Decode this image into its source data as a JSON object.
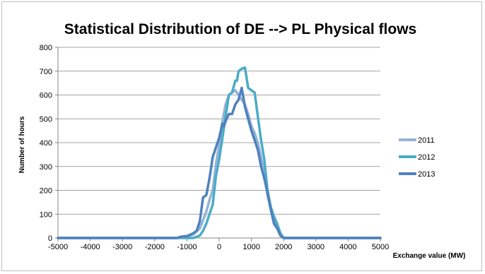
{
  "chart_data": {
    "type": "line",
    "title": "Statistical Distribution of DE --> PL Physical flows",
    "xlabel": "Exchange value (MW)",
    "ylabel": "Number of hours",
    "xlim": [
      -5000,
      5000
    ],
    "ylim": [
      0,
      800
    ],
    "xticks": [
      -5000,
      -4000,
      -3000,
      -2000,
      -1000,
      0,
      1000,
      2000,
      3000,
      4000,
      5000
    ],
    "yticks": [
      0,
      100,
      200,
      300,
      400,
      500,
      600,
      700,
      800
    ],
    "grid": true,
    "legend_position": "right",
    "series": [
      {
        "name": "2011",
        "color": "#95b3d7",
        "points": [
          [
            -5000,
            0
          ],
          [
            -1300,
            0
          ],
          [
            -1000,
            5
          ],
          [
            -800,
            15
          ],
          [
            -600,
            40
          ],
          [
            -400,
            110
          ],
          [
            -300,
            160
          ],
          [
            -200,
            200
          ],
          [
            -100,
            310
          ],
          [
            0,
            390
          ],
          [
            100,
            490
          ],
          [
            200,
            560
          ],
          [
            300,
            600
          ],
          [
            400,
            610
          ],
          [
            500,
            620
          ],
          [
            600,
            600
          ],
          [
            700,
            580
          ],
          [
            800,
            560
          ],
          [
            900,
            520
          ],
          [
            1000,
            470
          ],
          [
            1100,
            440
          ],
          [
            1200,
            400
          ],
          [
            1300,
            340
          ],
          [
            1400,
            260
          ],
          [
            1500,
            180
          ],
          [
            1600,
            120
          ],
          [
            1700,
            70
          ],
          [
            1800,
            40
          ],
          [
            1900,
            15
          ],
          [
            2000,
            0
          ],
          [
            5000,
            0
          ]
        ]
      },
      {
        "name": "2012",
        "color": "#4bacc6",
        "points": [
          [
            -5000,
            0
          ],
          [
            -800,
            0
          ],
          [
            -600,
            10
          ],
          [
            -500,
            30
          ],
          [
            -400,
            60
          ],
          [
            -300,
            100
          ],
          [
            -200,
            140
          ],
          [
            -100,
            260
          ],
          [
            0,
            330
          ],
          [
            100,
            420
          ],
          [
            200,
            510
          ],
          [
            300,
            600
          ],
          [
            400,
            610
          ],
          [
            500,
            660
          ],
          [
            550,
            660
          ],
          [
            600,
            700
          ],
          [
            700,
            710
          ],
          [
            800,
            715
          ],
          [
            900,
            630
          ],
          [
            1000,
            620
          ],
          [
            1100,
            610
          ],
          [
            1200,
            510
          ],
          [
            1300,
            410
          ],
          [
            1400,
            330
          ],
          [
            1500,
            200
          ],
          [
            1600,
            130
          ],
          [
            1700,
            90
          ],
          [
            1800,
            60
          ],
          [
            1900,
            20
          ],
          [
            2000,
            0
          ],
          [
            5000,
            0
          ]
        ]
      },
      {
        "name": "2013",
        "color": "#4f81bd",
        "points": [
          [
            -5000,
            0
          ],
          [
            -1300,
            0
          ],
          [
            -1200,
            5
          ],
          [
            -1000,
            8
          ],
          [
            -800,
            20
          ],
          [
            -700,
            30
          ],
          [
            -600,
            70
          ],
          [
            -500,
            170
          ],
          [
            -400,
            180
          ],
          [
            -300,
            250
          ],
          [
            -200,
            340
          ],
          [
            -100,
            380
          ],
          [
            0,
            420
          ],
          [
            100,
            480
          ],
          [
            150,
            470
          ],
          [
            200,
            490
          ],
          [
            300,
            520
          ],
          [
            400,
            520
          ],
          [
            500,
            560
          ],
          [
            600,
            580
          ],
          [
            700,
            630
          ],
          [
            800,
            550
          ],
          [
            900,
            500
          ],
          [
            1000,
            450
          ],
          [
            1100,
            410
          ],
          [
            1200,
            370
          ],
          [
            1300,
            300
          ],
          [
            1400,
            250
          ],
          [
            1500,
            190
          ],
          [
            1600,
            120
          ],
          [
            1700,
            60
          ],
          [
            1800,
            40
          ],
          [
            1900,
            10
          ],
          [
            2000,
            0
          ],
          [
            5000,
            0
          ]
        ]
      }
    ]
  }
}
